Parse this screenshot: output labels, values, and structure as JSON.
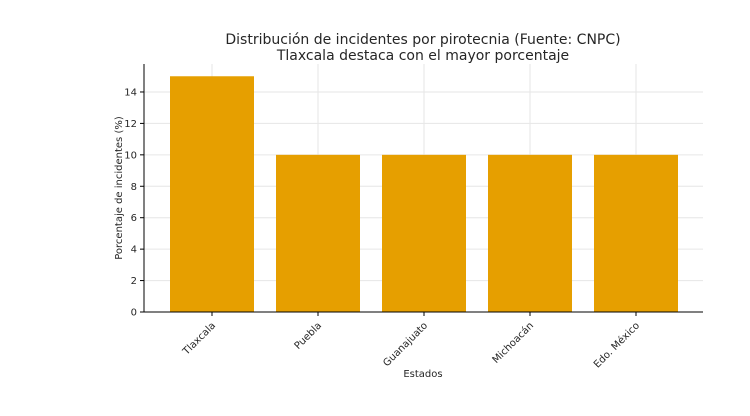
{
  "chart_data": {
    "type": "bar",
    "title": "Distribución de incidentes por pirotecnia (Fuente: CNPC)",
    "subtitle": "Tlaxcala destaca con el mayor porcentaje",
    "xlabel": "Estados",
    "ylabel": "Porcentaje de incidentes (%)",
    "categories": [
      "Tlaxcala",
      "Puebla",
      "Guanajuato",
      "Michoacán",
      "Edo. México"
    ],
    "values": [
      15,
      10,
      10,
      10,
      10
    ],
    "ylim": [
      0,
      15.78
    ],
    "yticks": [
      0,
      2,
      4,
      6,
      8,
      10,
      12,
      14
    ],
    "grid": true,
    "bar_color": "#E69F00"
  }
}
